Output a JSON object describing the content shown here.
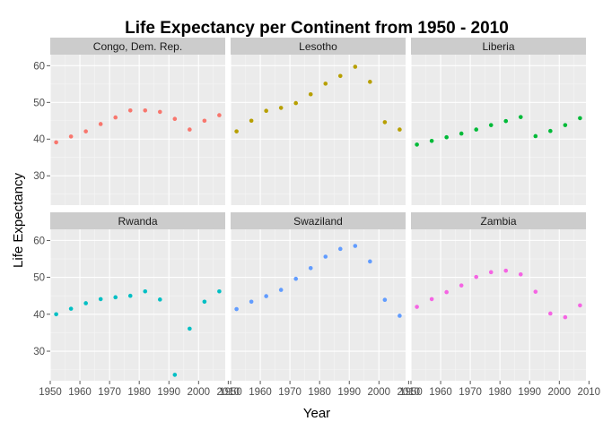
{
  "chart_data": {
    "type": "scatter",
    "title": "Life Expectancy per Continent from 1950 - 2010",
    "xlabel": "Year",
    "ylabel": "Life Expectancy",
    "xlim": [
      1950,
      2009
    ],
    "ylim": [
      22,
      63
    ],
    "x_ticks": [
      1950,
      1960,
      1970,
      1980,
      1990,
      2000,
      2010
    ],
    "y_ticks": [
      30,
      40,
      50,
      60
    ],
    "grid": true,
    "legend": "none",
    "facets": [
      {
        "name": "Congo, Dem. Rep.",
        "color": "#F8766D",
        "x": [
          1952,
          1957,
          1962,
          1967,
          1972,
          1977,
          1982,
          1987,
          1992,
          1997,
          2002,
          2007
        ],
        "y": [
          39.1,
          40.7,
          42.1,
          44.1,
          45.9,
          47.8,
          47.8,
          47.4,
          45.5,
          42.6,
          45.0,
          46.5
        ]
      },
      {
        "name": "Lesotho",
        "color": "#B79F00",
        "x": [
          1952,
          1957,
          1962,
          1967,
          1972,
          1977,
          1982,
          1987,
          1992,
          1997,
          2002,
          2007
        ],
        "y": [
          42.1,
          45.0,
          47.7,
          48.5,
          49.8,
          52.2,
          55.1,
          57.2,
          59.7,
          55.6,
          44.6,
          42.6
        ]
      },
      {
        "name": "Liberia",
        "color": "#00BA38",
        "x": [
          1952,
          1957,
          1962,
          1967,
          1972,
          1977,
          1982,
          1987,
          1992,
          1997,
          2002,
          2007
        ],
        "y": [
          38.5,
          39.5,
          40.5,
          41.5,
          42.6,
          43.8,
          44.9,
          46.0,
          40.8,
          42.2,
          43.8,
          45.7
        ]
      },
      {
        "name": "Rwanda",
        "color": "#00BFC4",
        "x": [
          1952,
          1957,
          1962,
          1967,
          1972,
          1977,
          1982,
          1987,
          1992,
          1997,
          2002,
          2007
        ],
        "y": [
          40.0,
          41.5,
          43.0,
          44.1,
          44.6,
          45.0,
          46.2,
          44.0,
          23.6,
          36.1,
          43.4,
          46.2
        ]
      },
      {
        "name": "Swaziland",
        "color": "#619CFF",
        "x": [
          1952,
          1957,
          1962,
          1967,
          1972,
          1977,
          1982,
          1987,
          1992,
          1997,
          2002,
          2007
        ],
        "y": [
          41.4,
          43.4,
          44.9,
          46.6,
          49.6,
          52.5,
          55.6,
          57.7,
          58.5,
          54.3,
          43.9,
          39.6
        ]
      },
      {
        "name": "Zambia",
        "color": "#F564E3",
        "x": [
          1952,
          1957,
          1962,
          1967,
          1972,
          1977,
          1982,
          1987,
          1992,
          1997,
          2002,
          2007
        ],
        "y": [
          42.0,
          44.1,
          46.0,
          47.8,
          50.1,
          51.4,
          51.8,
          50.8,
          46.1,
          40.2,
          39.2,
          42.4
        ]
      }
    ]
  }
}
